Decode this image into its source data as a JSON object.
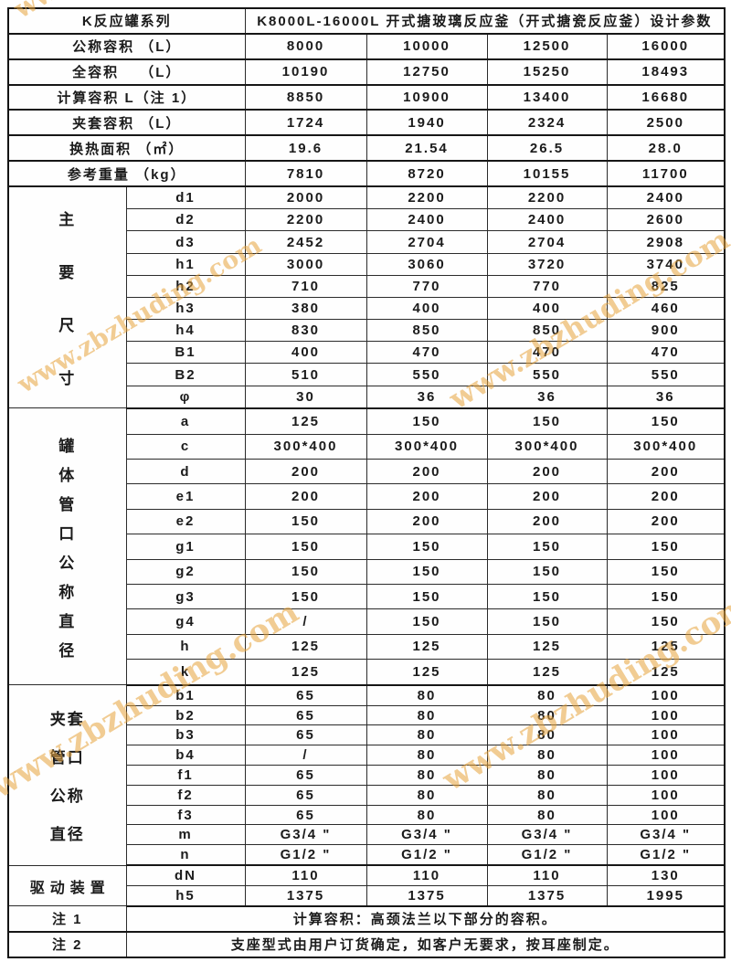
{
  "watermark": {
    "text": "www.zbzhuding.com",
    "color_hex": "#E6A23A"
  },
  "header": {
    "series_label": "K反应罐系列",
    "title": "K8000L-16000L 开式搪玻璃反应釜（开式搪瓷反应釜）设计参数"
  },
  "summary_rows": [
    {
      "label": "公称容积 （L）",
      "values": [
        "8000",
        "10000",
        "12500",
        "16000"
      ]
    },
    {
      "label": "全容积　 （L）",
      "values": [
        "10190",
        "12750",
        "15250",
        "18493"
      ]
    },
    {
      "label": "计算容积 L（注 1）",
      "values": [
        "8850",
        "10900",
        "13400",
        "16680"
      ]
    },
    {
      "label": "夹套容积 （L）",
      "values": [
        "1724",
        "1940",
        "2324",
        "2500"
      ]
    },
    {
      "label": "换热面积 （㎡）",
      "values": [
        "19.6",
        "21.54",
        "26.5",
        "28.0"
      ]
    },
    {
      "label": "参考重量 （kg）",
      "values": [
        "7810",
        "8720",
        "10155",
        "11700"
      ]
    }
  ],
  "groups": [
    {
      "label": "主要尺寸",
      "label_layout": [
        "主",
        "要",
        "尺",
        "寸"
      ],
      "rows": [
        {
          "param": "d1",
          "values": [
            "2000",
            "2200",
            "2200",
            "2400"
          ]
        },
        {
          "param": "d2",
          "values": [
            "2200",
            "2400",
            "2400",
            "2600"
          ]
        },
        {
          "param": "d3",
          "values": [
            "2452",
            "2704",
            "2704",
            "2908"
          ]
        },
        {
          "param": "h1",
          "values": [
            "3000",
            "3060",
            "3720",
            "3740"
          ]
        },
        {
          "param": "h2",
          "values": [
            "710",
            "770",
            "770",
            "825"
          ]
        },
        {
          "param": "h3",
          "values": [
            "380",
            "400",
            "400",
            "460"
          ]
        },
        {
          "param": "h4",
          "values": [
            "830",
            "850",
            "850",
            "900"
          ]
        },
        {
          "param": "B1",
          "values": [
            "400",
            "470",
            "470",
            "470"
          ]
        },
        {
          "param": "B2",
          "values": [
            "510",
            "550",
            "550",
            "550"
          ]
        },
        {
          "param": "φ",
          "values": [
            "30",
            "36",
            "36",
            "36"
          ]
        }
      ]
    },
    {
      "label": "罐体管口公称直径",
      "label_layout": [
        "罐",
        "体",
        "管",
        "口",
        "公",
        "称",
        "直",
        "径"
      ],
      "rows": [
        {
          "param": "a",
          "values": [
            "125",
            "150",
            "150",
            "150"
          ]
        },
        {
          "param": "c",
          "values": [
            "300*400",
            "300*400",
            "300*400",
            "300*400"
          ]
        },
        {
          "param": "d",
          "values": [
            "200",
            "200",
            "200",
            "200"
          ]
        },
        {
          "param": "e1",
          "values": [
            "200",
            "200",
            "200",
            "200"
          ]
        },
        {
          "param": "e2",
          "values": [
            "150",
            "200",
            "200",
            "200"
          ]
        },
        {
          "param": "g1",
          "values": [
            "150",
            "150",
            "150",
            "150"
          ]
        },
        {
          "param": "g2",
          "values": [
            "150",
            "150",
            "150",
            "150"
          ]
        },
        {
          "param": "g3",
          "values": [
            "150",
            "150",
            "150",
            "150"
          ]
        },
        {
          "param": "g4",
          "values": [
            "/",
            "150",
            "150",
            "150"
          ]
        },
        {
          "param": "h",
          "values": [
            "125",
            "125",
            "125",
            "125"
          ]
        },
        {
          "param": "k",
          "values": [
            "125",
            "125",
            "125",
            "125"
          ]
        }
      ]
    },
    {
      "label": "夹套管口公称直径",
      "label_layout": [
        "夹套",
        "管口",
        "公称",
        "直径"
      ],
      "rows": [
        {
          "param": "b1",
          "values": [
            "65",
            "80",
            "80",
            "100"
          ]
        },
        {
          "param": "b2",
          "values": [
            "65",
            "80",
            "80",
            "100"
          ]
        },
        {
          "param": "b3",
          "values": [
            "65",
            "80",
            "80",
            "100"
          ]
        },
        {
          "param": "b4",
          "values": [
            "/",
            "80",
            "80",
            "100"
          ]
        },
        {
          "param": "f1",
          "values": [
            "65",
            "80",
            "80",
            "100"
          ]
        },
        {
          "param": "f2",
          "values": [
            "65",
            "80",
            "80",
            "100"
          ]
        },
        {
          "param": "f3",
          "values": [
            "65",
            "80",
            "80",
            "100"
          ]
        },
        {
          "param": "m",
          "values": [
            "G3/4 \"",
            "G3/4 \"",
            "G3/4 \"",
            "G3/4 \""
          ]
        },
        {
          "param": "n",
          "values": [
            "G1/2 \"",
            "G1/2 \"",
            "G1/2 \"",
            "G1/2 \""
          ]
        }
      ]
    },
    {
      "label": "驱动装置",
      "label_layout": [
        "驱动装置"
      ],
      "rows": [
        {
          "param": "dN",
          "values": [
            "110",
            "110",
            "110",
            "130"
          ]
        },
        {
          "param": "h5",
          "values": [
            "1375",
            "1375",
            "1375",
            "1995"
          ]
        }
      ]
    }
  ],
  "notes": [
    {
      "label": "注 1",
      "text": "计算容积：高颈法兰以下部分的容积。"
    },
    {
      "label": "注 2",
      "text": "支座型式由用户订货确定，如客户无要求，按耳座制定。"
    }
  ]
}
